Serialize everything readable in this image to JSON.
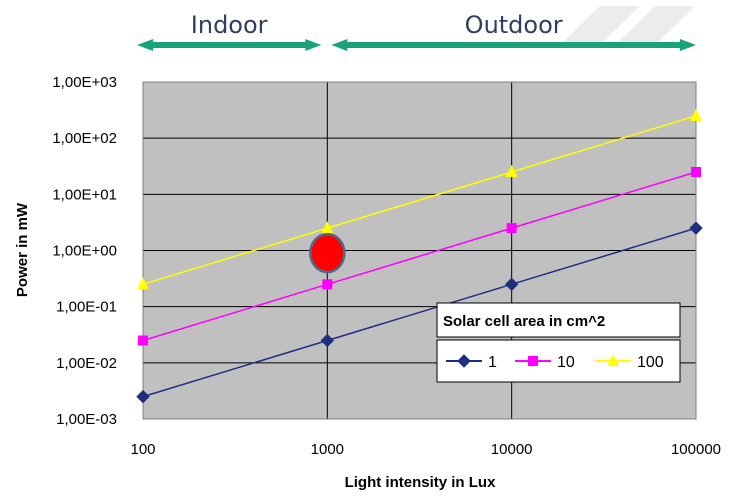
{
  "regions": [
    {
      "label": "Indoor",
      "from": 100,
      "to": 1000,
      "color": "#1aa37a"
    },
    {
      "label": "Outdoor",
      "from": 1000,
      "to": 100000,
      "color": "#1aa37a"
    }
  ],
  "marker": {
    "x": 1000,
    "y": 0.9,
    "fill": "#ff0000",
    "stroke": "#4a6b8f"
  },
  "chart_data": {
    "type": "line",
    "xlabel": "Light intensity in Lux",
    "ylabel": "Power in mW",
    "x_scale": "log",
    "y_scale": "log",
    "xlim": [
      100,
      100000
    ],
    "ylim": [
      0.001,
      1000
    ],
    "x_ticks": [
      100,
      1000,
      10000,
      100000
    ],
    "x_tick_labels": [
      "100",
      "1000",
      "10000",
      "100000"
    ],
    "y_ticks": [
      0.001,
      0.01,
      0.1,
      1,
      10,
      100,
      1000
    ],
    "y_tick_labels": [
      "1,00E-03",
      "1,00E-02",
      "1,00E-01",
      "1,00E+00",
      "1,00E+01",
      "1,00E+02",
      "1,00E+03"
    ],
    "grid": true,
    "plot_background": "#c0c0c0",
    "legend": {
      "title": "Solar cell area in cm^2",
      "placement": "bottom-right"
    },
    "x": [
      100,
      1000,
      10000,
      100000
    ],
    "series": [
      {
        "name": "1",
        "values": [
          0.0025,
          0.025,
          0.25,
          2.5
        ],
        "color": "#1f2f7f",
        "marker": "diamond"
      },
      {
        "name": "10",
        "values": [
          0.025,
          0.25,
          2.5,
          25
        ],
        "color": "#ff00ff",
        "marker": "square"
      },
      {
        "name": "100",
        "values": [
          0.25,
          2.5,
          25,
          250
        ],
        "color": "#ffff00",
        "marker": "triangle"
      }
    ]
  }
}
